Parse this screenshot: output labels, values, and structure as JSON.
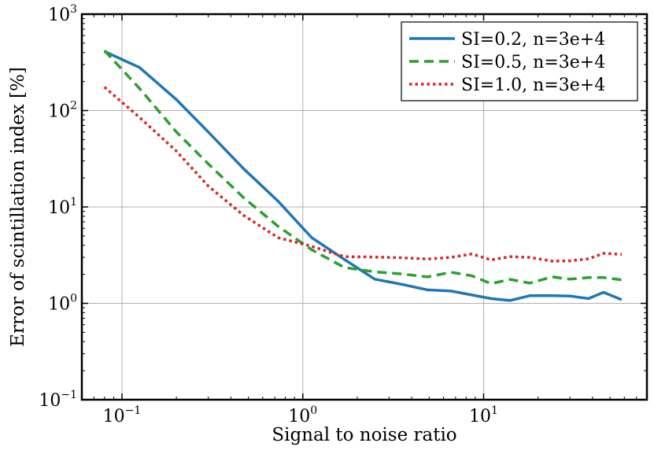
{
  "chart_data": {
    "type": "line",
    "xscale": "log",
    "yscale": "log",
    "xlabel": "Signal to noise ratio",
    "ylabel": "Error of scintillation index [%]",
    "xlim": [
      0.06,
      80
    ],
    "ylim": [
      0.1,
      1000
    ],
    "grid": true,
    "legend_position": "top-right",
    "x_ticks": [
      {
        "value": 0.1,
        "base": "10",
        "exp": "−1"
      },
      {
        "value": 1,
        "base": "10",
        "exp": "0"
      },
      {
        "value": 10,
        "base": "10",
        "exp": "1"
      }
    ],
    "y_ticks": [
      {
        "value": 0.1,
        "base": "10",
        "exp": "−1"
      },
      {
        "value": 1,
        "base": "10",
        "exp": "0"
      },
      {
        "value": 10,
        "base": "10",
        "exp": "1"
      },
      {
        "value": 100,
        "base": "10",
        "exp": "2"
      },
      {
        "value": 1000,
        "base": "10",
        "exp": "3"
      }
    ],
    "series": [
      {
        "name": "SI=0.2, n=3e+4",
        "color": "#1f77b4",
        "style": "solid",
        "x": [
          0.08,
          0.125,
          0.2,
          0.3,
          0.47,
          0.73,
          1.12,
          1.7,
          2.5,
          3.5,
          4.9,
          6.6,
          8.6,
          11,
          14,
          18,
          24,
          30,
          38,
          46,
          58
        ],
        "y": [
          410,
          280,
          130,
          60,
          25,
          11.5,
          4.8,
          2.85,
          1.78,
          1.58,
          1.38,
          1.34,
          1.22,
          1.12,
          1.07,
          1.2,
          1.2,
          1.19,
          1.12,
          1.3,
          1.09
        ]
      },
      {
        "name": "SI=0.5, n=3e+4",
        "color": "#2ca02c",
        "style": "dashed",
        "x": [
          0.08,
          0.125,
          0.2,
          0.3,
          0.47,
          0.73,
          1.12,
          1.7,
          2.5,
          3.5,
          4.9,
          6.6,
          8.6,
          11,
          14,
          18,
          24,
          30,
          38,
          46,
          58
        ],
        "y": [
          420,
          170,
          60,
          28,
          12.5,
          6.3,
          3.6,
          2.35,
          2.12,
          2.02,
          1.88,
          2.1,
          1.93,
          1.6,
          1.77,
          1.62,
          1.88,
          1.78,
          1.85,
          1.85,
          1.75
        ]
      },
      {
        "name": "SI=1.0, n=3e+4",
        "color": "#d62728",
        "style": "dotted",
        "x": [
          0.08,
          0.125,
          0.2,
          0.3,
          0.47,
          0.73,
          1.12,
          1.7,
          2.5,
          3.5,
          4.9,
          6.6,
          8.6,
          11,
          14,
          18,
          24,
          30,
          38,
          46,
          58
        ],
        "y": [
          175,
          85,
          38,
          16.5,
          8.2,
          4.8,
          3.9,
          3.05,
          3.02,
          2.97,
          2.88,
          3.0,
          3.25,
          2.82,
          3.05,
          3.0,
          2.74,
          2.76,
          2.9,
          3.3,
          3.22
        ]
      }
    ]
  }
}
